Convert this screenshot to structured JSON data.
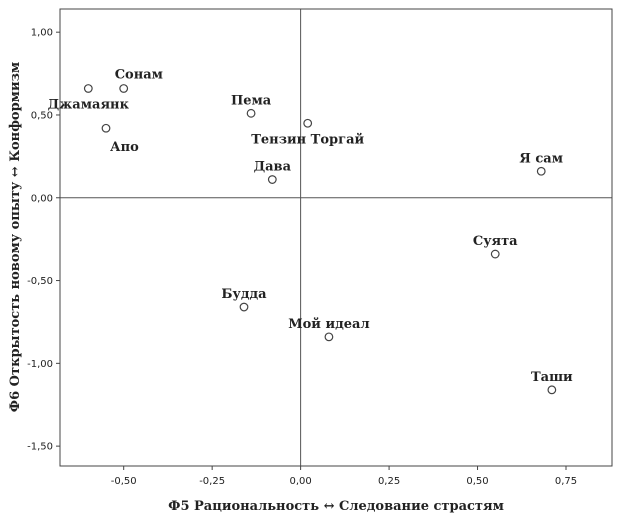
{
  "chart_data": {
    "type": "scatter",
    "xlabel": "Ф5 Рациональность ↔ Следование страстям",
    "ylabel": "Ф6 Открытость новому опыту ↔ Конформизм",
    "xlim": [
      -0.68,
      0.88
    ],
    "ylim": [
      -1.62,
      1.14
    ],
    "xticks": [
      {
        "value": -0.5,
        "label": "-0,50"
      },
      {
        "value": -0.25,
        "label": "-0,25"
      },
      {
        "value": 0.0,
        "label": "0,00"
      },
      {
        "value": 0.25,
        "label": "0,25"
      },
      {
        "value": 0.5,
        "label": "0,50"
      },
      {
        "value": 0.75,
        "label": "0,75"
      }
    ],
    "yticks": [
      {
        "value": 1.0,
        "label": "1,00"
      },
      {
        "value": 0.5,
        "label": "0,50"
      },
      {
        "value": 0.0,
        "label": "0,00"
      },
      {
        "value": -0.5,
        "label": "-0,50"
      },
      {
        "value": -1.0,
        "label": "-1,00"
      },
      {
        "value": -1.5,
        "label": "-1,50"
      }
    ],
    "reference_lines": {
      "x": 0,
      "y": 0
    },
    "grid": false,
    "points": [
      {
        "label": "Сонам",
        "x": -0.5,
        "y": 0.66,
        "label_pos": "above-right"
      },
      {
        "label": "Джамаянк",
        "x": -0.6,
        "y": 0.66,
        "label_pos": "below"
      },
      {
        "label": "Апо",
        "x": -0.55,
        "y": 0.42,
        "label_pos": "below-right"
      },
      {
        "label": "Пема",
        "x": -0.14,
        "y": 0.51,
        "label_pos": "above"
      },
      {
        "label": "Тензин Торгай",
        "x": 0.02,
        "y": 0.45,
        "label_pos": "below"
      },
      {
        "label": "Дава",
        "x": -0.08,
        "y": 0.11,
        "label_pos": "above"
      },
      {
        "label": "Я сам",
        "x": 0.68,
        "y": 0.16,
        "label_pos": "above"
      },
      {
        "label": "Суята",
        "x": 0.55,
        "y": -0.34,
        "label_pos": "above"
      },
      {
        "label": "Будда",
        "x": -0.16,
        "y": -0.66,
        "label_pos": "above"
      },
      {
        "label": "Мой идеал",
        "x": 0.08,
        "y": -0.84,
        "label_pos": "above"
      },
      {
        "label": "Таши",
        "x": 0.71,
        "y": -1.16,
        "label_pos": "above"
      }
    ]
  }
}
